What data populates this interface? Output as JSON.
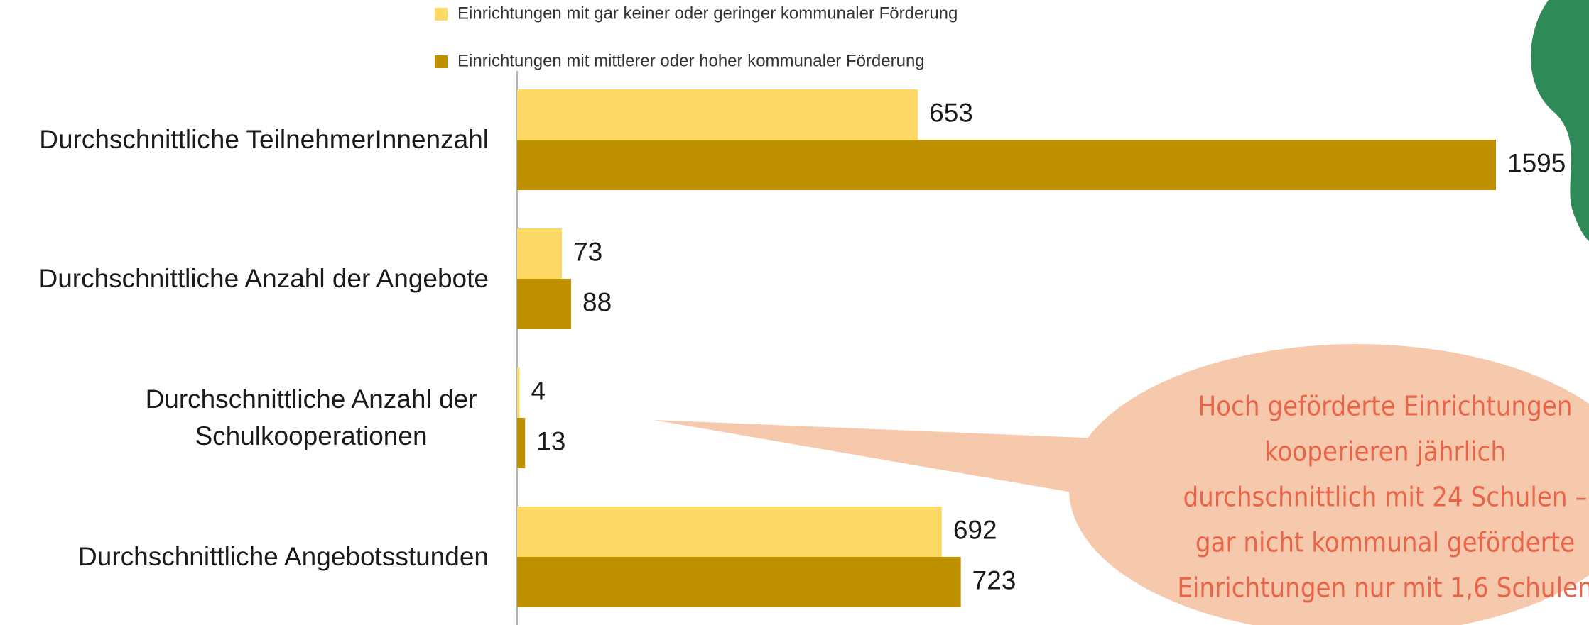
{
  "chart_data": {
    "type": "barh",
    "categories": [
      "Durchschnittliche TeilnehmerInnenzahl",
      "Durchschnittliche Anzahl der Angebote",
      "Durchschnittliche Anzahl der Schulkooperationen",
      "Durchschnittliche Angebotsstunden"
    ],
    "series": [
      {
        "name": "Einrichtungen mit gar keiner oder geringer kommunaler Förderung",
        "color": "#ffd966",
        "values": [
          653,
          73,
          4,
          692
        ]
      },
      {
        "name": "Einrichtungen mit mittlerer oder hoher kommunaler Förderung",
        "color": "#bf9000",
        "values": [
          1595,
          88,
          13,
          723
        ]
      }
    ],
    "annotation": [
      "Hoch geförderte Einrichtungen",
      "kooperieren jährlich",
      "durchschnittlich mit 24 Schulen –",
      "gar nicht kommunal geförderte",
      "Einrichtungen nur mit 1,6 Schulen"
    ]
  }
}
